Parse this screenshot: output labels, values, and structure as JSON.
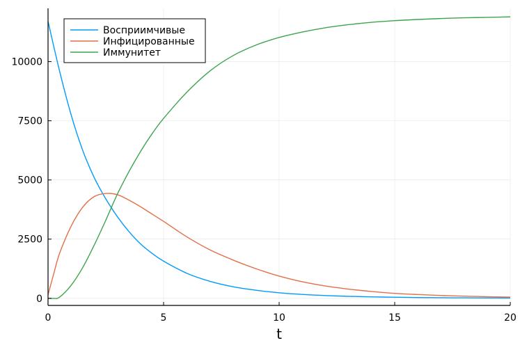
{
  "chart_data": {
    "type": "line",
    "title": "",
    "xlabel": "t",
    "ylabel": "",
    "xlim": [
      0,
      20
    ],
    "ylim": [
      -300,
      12250
    ],
    "grid": true,
    "legend_position": "top-left",
    "x_ticks": [
      0,
      5,
      10,
      15,
      20
    ],
    "y_ticks": [
      0,
      2500,
      5000,
      7500,
      10000
    ],
    "series": [
      {
        "name": "Восприимчивые",
        "color": "#009AFA",
        "x": [
          0,
          0.5,
          1,
          1.5,
          2,
          2.5,
          3,
          3.5,
          4,
          4.5,
          5,
          6,
          7,
          8,
          9,
          10,
          11,
          12,
          13,
          14,
          15,
          16,
          17,
          18,
          19,
          20
        ],
        "y": [
          11700,
          9600,
          7750,
          6250,
          5100,
          4200,
          3450,
          2820,
          2300,
          1900,
          1570,
          1060,
          720,
          490,
          340,
          235,
          165,
          118,
          85,
          62,
          46,
          34,
          26,
          20,
          16,
          12
        ]
      },
      {
        "name": "Инфицированные",
        "color": "#E26F46",
        "x": [
          0,
          0.25,
          0.5,
          1,
          1.5,
          2,
          2.5,
          3,
          3.5,
          4,
          4.5,
          5,
          6,
          7,
          8,
          9,
          10,
          11,
          12,
          13,
          14,
          15,
          16,
          17,
          18,
          19,
          20
        ],
        "y": [
          150,
          1050,
          1900,
          3050,
          3850,
          4300,
          4430,
          4380,
          4150,
          3870,
          3560,
          3250,
          2600,
          2050,
          1620,
          1250,
          940,
          700,
          520,
          390,
          290,
          210,
          160,
          120,
          90,
          70,
          50
        ]
      },
      {
        "name": "Иммунитет",
        "color": "#3DA44D",
        "x": [
          0,
          0.25,
          0.5,
          1,
          1.5,
          2,
          2.5,
          3,
          3.5,
          4,
          4.5,
          5,
          6,
          7,
          8,
          9,
          10,
          11,
          12,
          13,
          14,
          15,
          16,
          17,
          18,
          19,
          20
        ],
        "y": [
          0,
          0,
          50,
          550,
          1300,
          2250,
          3300,
          4400,
          5350,
          6200,
          6950,
          7600,
          8700,
          9600,
          10250,
          10700,
          11020,
          11250,
          11430,
          11560,
          11660,
          11730,
          11780,
          11820,
          11850,
          11870,
          11890
        ]
      }
    ]
  }
}
